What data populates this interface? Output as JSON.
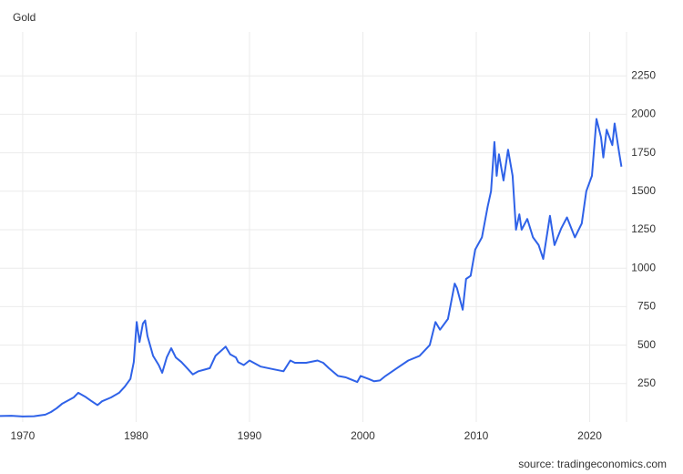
{
  "chart_data": {
    "type": "line",
    "title": "Gold",
    "source": "source: tradingeconomics.com",
    "x": [
      1968,
      1969,
      1970,
      1971,
      1972,
      1972.5,
      1973,
      1973.5,
      1974,
      1974.5,
      1974.9,
      1975.5,
      1976,
      1976.6,
      1977,
      1977.8,
      1978.5,
      1979,
      1979.5,
      1979.8,
      1980.05,
      1980.3,
      1980.6,
      1980.8,
      1981,
      1981.5,
      1982,
      1982.3,
      1982.7,
      1983.1,
      1983.5,
      1984,
      1984.5,
      1985,
      1985.5,
      1986,
      1986.5,
      1987,
      1987.9,
      1988.3,
      1988.8,
      1989,
      1989.5,
      1990,
      1990.5,
      1991,
      1992,
      1993,
      1993.6,
      1994,
      1995,
      1996,
      1996.5,
      1997,
      1997.8,
      1998.5,
      1999.5,
      1999.8,
      2000.5,
      2001,
      2001.5,
      2002,
      2003,
      2004,
      2005,
      2005.9,
      2006.4,
      2006.8,
      2007.5,
      2008.1,
      2008.3,
      2008.8,
      2009.1,
      2009.5,
      2009.9,
      2010.5,
      2011,
      2011.3,
      2011.6,
      2011.8,
      2012,
      2012.4,
      2012.8,
      2013.2,
      2013.5,
      2013.8,
      2014,
      2014.5,
      2015,
      2015.5,
      2015.9,
      2016.5,
      2016.9,
      2017.5,
      2018,
      2018.7,
      2019.3,
      2019.7,
      2020.2,
      2020.6,
      2021,
      2021.2,
      2021.5,
      2022,
      2022.2,
      2022.6,
      2022.8
    ],
    "series": [
      {
        "name": "Gold",
        "color": "#2f62e8",
        "values": [
          39,
          41,
          36,
          38,
          48,
          65,
          90,
          120,
          140,
          160,
          190,
          165,
          140,
          110,
          135,
          160,
          190,
          230,
          280,
          390,
          650,
          520,
          640,
          660,
          560,
          430,
          370,
          320,
          420,
          480,
          420,
          390,
          350,
          310,
          330,
          340,
          350,
          430,
          490,
          440,
          420,
          390,
          370,
          400,
          380,
          360,
          345,
          330,
          400,
          385,
          385,
          400,
          385,
          350,
          300,
          290,
          260,
          300,
          280,
          265,
          270,
          300,
          350,
          400,
          430,
          500,
          650,
          600,
          670,
          900,
          870,
          730,
          930,
          950,
          1120,
          1200,
          1400,
          1500,
          1820,
          1600,
          1740,
          1570,
          1770,
          1600,
          1250,
          1350,
          1250,
          1320,
          1200,
          1150,
          1060,
          1340,
          1150,
          1260,
          1330,
          1200,
          1290,
          1500,
          1600,
          1970,
          1850,
          1720,
          1900,
          1800,
          1940,
          1750,
          1660
        ]
      }
    ],
    "xlim": [
      1968,
      2023.25
    ],
    "xticks": [
      1970,
      1980,
      1990,
      2000,
      2010,
      2020
    ],
    "ylim": [
      0,
      2500
    ],
    "yticks": [
      250,
      500,
      750,
      1000,
      1250,
      1500,
      1750,
      2000,
      2250
    ],
    "grid": true
  }
}
